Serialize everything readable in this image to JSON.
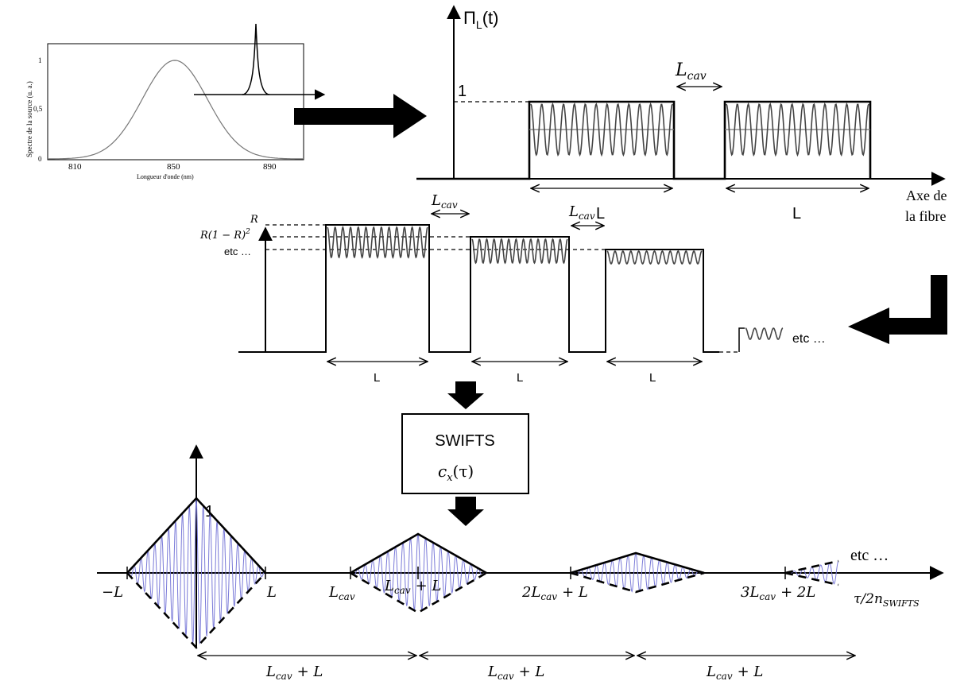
{
  "spectrum_plot": {
    "y_label": "Spectre de la source (u. a.)",
    "x_label": "Longueur d'onde (nm)",
    "x_ticks": [
      "810",
      "850",
      "890"
    ],
    "y_ticks": [
      "1",
      "0,5",
      "0"
    ]
  },
  "pi_plot": {
    "y_label": "Π",
    "y_label_sub": "L",
    "y_label_arg": "(t)",
    "level_one": "1",
    "gap_label_main": "L",
    "gap_label_sub": "cav",
    "width_label_1": "L",
    "width_label_2": "L",
    "x_axis_line1": "Axe de",
    "x_axis_line2": "la fibre"
  },
  "reflection_plot": {
    "level_r": "R",
    "level_r2": "R(1 − R)",
    "level_r2_exp": "2",
    "level_etc": "etc …",
    "gap1_main": "L",
    "gap1_sub": "cav",
    "gap2_main": "L",
    "gap2_sub": "cav",
    "width_labels": [
      "L",
      "L",
      "L"
    ],
    "tail_etc": "etc …"
  },
  "swifts_box": {
    "title": "SWIFTS",
    "func_main": "c",
    "func_sub": "x",
    "func_arg": "(τ)"
  },
  "correlation_plot": {
    "peak_label": "1",
    "tick_minus_l": "−L",
    "tick_l": "L",
    "tick_lcav_main": "L",
    "tick_lcav_sub": "cav",
    "tick_lcav_plus_l": "+ L",
    "tick_2lcav": "2L",
    "tick_2lcav_plus_l": "+ L",
    "tick_3lcav": "3L",
    "tick_3lcav_plus_2l": "+ 2L",
    "axis_label_main": "τ/2n",
    "axis_label_sub": "SWIFTS",
    "tail_etc": "etc …",
    "period_labels": [
      "L",
      "L",
      "L"
    ],
    "period_sub": "cav",
    "period_suffix": "+ L"
  }
}
